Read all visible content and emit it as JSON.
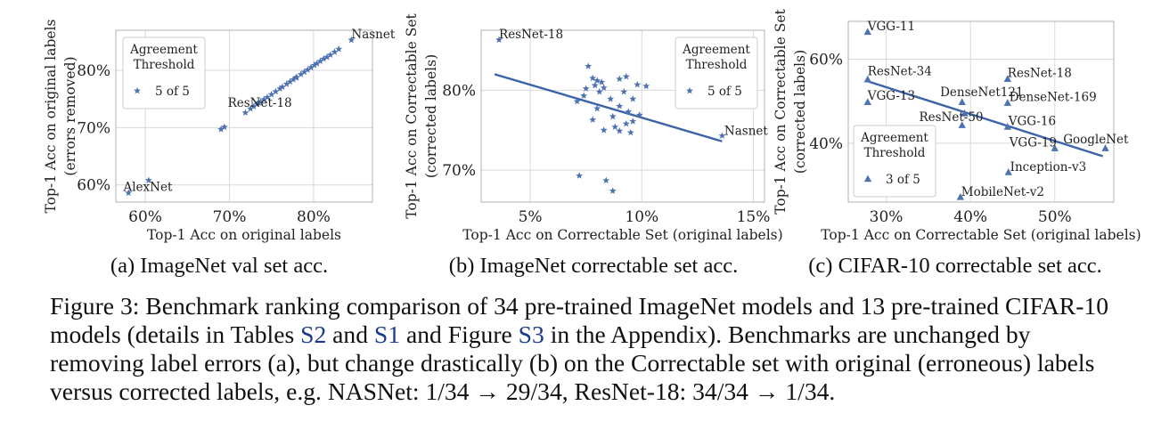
{
  "chart_data": [
    {
      "type": "scatter",
      "subcaption": "(a) ImageNet val set acc.",
      "xlabel": "Top-1 Acc on original labels",
      "ylabel": [
        "Top-1 Acc on original labels",
        "(errors removed)"
      ],
      "xlim": [
        56.5,
        87
      ],
      "ylim": [
        57,
        87
      ],
      "xticks": [
        {
          "v": 60,
          "label": "60%"
        },
        {
          "v": 70,
          "label": "70%"
        },
        {
          "v": 80,
          "label": "80%"
        }
      ],
      "yticks": [
        {
          "v": 60,
          "label": "60%"
        },
        {
          "v": 70,
          "label": "70%"
        },
        {
          "v": 80,
          "label": "80%"
        }
      ],
      "marker": "star",
      "legend": {
        "title": [
          "Agreement",
          "Threshold"
        ],
        "entry": "5 of 5",
        "position": "upper-left"
      },
      "points": [
        [
          58.0,
          58.6
        ],
        [
          60.4,
          60.8
        ],
        [
          69.0,
          69.7
        ],
        [
          69.4,
          70.1
        ],
        [
          71.9,
          72.6
        ],
        [
          72.5,
          73.3
        ],
        [
          72.9,
          73.7
        ],
        [
          73.3,
          74.1
        ],
        [
          73.7,
          74.5
        ],
        [
          74.1,
          74.9
        ],
        [
          74.5,
          75.3
        ],
        [
          75.0,
          75.8
        ],
        [
          75.5,
          76.3
        ],
        [
          76.0,
          76.8
        ],
        [
          76.3,
          77.1
        ],
        [
          76.8,
          77.6
        ],
        [
          77.2,
          78.0
        ],
        [
          77.6,
          78.4
        ],
        [
          78.0,
          78.8
        ],
        [
          78.5,
          79.3
        ],
        [
          78.9,
          79.7
        ],
        [
          79.3,
          80.1
        ],
        [
          79.7,
          80.5
        ],
        [
          80.1,
          80.9
        ],
        [
          80.4,
          81.2
        ],
        [
          80.8,
          81.6
        ],
        [
          81.2,
          82.0
        ],
        [
          81.6,
          82.3
        ],
        [
          82.0,
          82.7
        ],
        [
          82.5,
          83.2
        ],
        [
          83.0,
          83.7
        ],
        [
          84.5,
          85.3
        ],
        [
          73.5,
          74.3
        ],
        [
          77.9,
          78.7
        ]
      ],
      "annotations": [
        {
          "text": "Nasnet",
          "x": 84.5,
          "y": 85.3,
          "anchor": "start"
        },
        {
          "text": "ResNet-18",
          "x": 69.8,
          "y": 73.3,
          "anchor": "start"
        },
        {
          "text": "AlexNet",
          "x": 57.4,
          "y": 58.6,
          "anchor": "start"
        }
      ]
    },
    {
      "type": "scatter",
      "subcaption": "(b) ImageNet correctable set acc.",
      "xlabel": "Top-1 Acc on Correctable Set (original labels)",
      "ylabel": [
        "Top-1 Acc on Correctable Set",
        "(corrected labels)"
      ],
      "xlim": [
        2.8,
        15.5
      ],
      "ylim": [
        66,
        87.5
      ],
      "xticks": [
        {
          "v": 5,
          "label": "5%"
        },
        {
          "v": 10,
          "label": "10%"
        },
        {
          "v": 15,
          "label": "15%"
        }
      ],
      "yticks": [
        {
          "v": 70,
          "label": "70%"
        },
        {
          "v": 80,
          "label": "80%"
        }
      ],
      "marker": "star",
      "legend": {
        "title": [
          "Agreement",
          "Threshold"
        ],
        "entry": "5 of 5",
        "position": "upper-right"
      },
      "trendline": [
        [
          3.4,
          82.0
        ],
        [
          13.6,
          73.6
        ]
      ],
      "points": [
        [
          3.6,
          86.3
        ],
        [
          13.6,
          74.3
        ],
        [
          7.2,
          69.3
        ],
        [
          8.4,
          68.7
        ],
        [
          8.7,
          67.4
        ],
        [
          7.6,
          83.0
        ],
        [
          7.8,
          81.5
        ],
        [
          8.0,
          81.2
        ],
        [
          8.2,
          81.0
        ],
        [
          7.9,
          80.6
        ],
        [
          8.3,
          80.3
        ],
        [
          7.5,
          80.2
        ],
        [
          8.1,
          79.8
        ],
        [
          9.0,
          81.4
        ],
        [
          9.3,
          81.7
        ],
        [
          9.8,
          80.7
        ],
        [
          10.2,
          80.5
        ],
        [
          9.2,
          79.8
        ],
        [
          7.4,
          79.3
        ],
        [
          7.1,
          78.6
        ],
        [
          8.6,
          78.9
        ],
        [
          9.6,
          78.9
        ],
        [
          9.0,
          78.0
        ],
        [
          8.0,
          77.7
        ],
        [
          9.4,
          77.3
        ],
        [
          7.8,
          76.3
        ],
        [
          8.7,
          76.7
        ],
        [
          9.9,
          76.9
        ],
        [
          9.6,
          76.1
        ],
        [
          9.3,
          75.8
        ],
        [
          8.8,
          75.4
        ],
        [
          9.0,
          74.9
        ],
        [
          8.3,
          75.0
        ],
        [
          9.5,
          74.7
        ]
      ],
      "annotations": [
        {
          "text": "ResNet-18",
          "x": 3.6,
          "y": 86.3,
          "anchor": "start"
        },
        {
          "text": "Nasnet",
          "x": 13.7,
          "y": 74.2,
          "anchor": "start"
        }
      ]
    },
    {
      "type": "scatter",
      "subcaption": "(c) CIFAR-10 correctable set acc.",
      "xlabel": "Top-1 Acc on Correctable Set (original labels)",
      "ylabel": [
        "Top-1 Acc on Correctable Set",
        "(corrected labels)"
      ],
      "xlim": [
        25.5,
        57
      ],
      "ylim": [
        26,
        69
      ],
      "xticks": [
        {
          "v": 30,
          "label": "30%"
        },
        {
          "v": 40,
          "label": "40%"
        },
        {
          "v": 50,
          "label": "50%"
        }
      ],
      "yticks": [
        {
          "v": 40,
          "label": "40%"
        },
        {
          "v": 60,
          "label": "60%"
        }
      ],
      "marker": "triangle",
      "legend": {
        "title": [
          "Agreement",
          "Threshold"
        ],
        "entry": "3 of 5",
        "position": "lower-left"
      },
      "trendline": [
        [
          27.7,
          54.8
        ],
        [
          55.7,
          36.9
        ]
      ],
      "points": [
        [
          27.8,
          66.5
        ],
        [
          27.8,
          55.2
        ],
        [
          27.8,
          49.8
        ],
        [
          44.4,
          55.3
        ],
        [
          39.0,
          49.8
        ],
        [
          44.4,
          49.6
        ],
        [
          39.0,
          44.3
        ],
        [
          44.4,
          43.9
        ],
        [
          50.0,
          38.8
        ],
        [
          56.0,
          38.8
        ],
        [
          44.5,
          33.1
        ],
        [
          38.8,
          27.2
        ],
        [
          39.3,
          47.1
        ]
      ],
      "annotations": [
        {
          "text": "VGG-11",
          "x": 27.8,
          "y": 66.5,
          "anchor": "start"
        },
        {
          "text": "ResNet-34",
          "x": 27.8,
          "y": 55.8,
          "anchor": "start"
        },
        {
          "text": "VGG-13",
          "x": 27.8,
          "y": 49.9,
          "anchor": "start"
        },
        {
          "text": "DenseNet121",
          "x": 36.4,
          "y": 50.8,
          "anchor": "start"
        },
        {
          "text": "ResNet-18",
          "x": 44.4,
          "y": 55.3,
          "anchor": "start"
        },
        {
          "text": "DenseNet-169",
          "x": 44.6,
          "y": 49.6,
          "anchor": "start"
        },
        {
          "text": "ResNet-50",
          "x": 33.9,
          "y": 44.9,
          "anchor": "start"
        },
        {
          "text": "VGG-16",
          "x": 44.5,
          "y": 43.9,
          "anchor": "start"
        },
        {
          "text": "VGG-19",
          "x": 44.6,
          "y": 38.8,
          "anchor": "start"
        },
        {
          "text": "GoogleNet",
          "x": 51.0,
          "y": 39.6,
          "anchor": "start"
        },
        {
          "text": "Inception-v3",
          "x": 44.7,
          "y": 33.0,
          "anchor": "start"
        },
        {
          "text": "MobileNet-v2",
          "x": 38.9,
          "y": 27.1,
          "anchor": "start"
        }
      ]
    }
  ],
  "caption": {
    "prefix": "Figure 3: Benchmark ranking comparison of 34 pre-trained ImageNet models and 13 pre-trained CIFAR-10 models (details in Tables ",
    "ref1": "S2",
    "and": " and ",
    "ref2": "S1",
    "mid": " and Figure ",
    "ref3": "S3",
    "suffix": " in the Appendix). Benchmarks are unchanged by removing label errors (a), but change drastically (b) on the Correctable set with original (erroneous) labels versus corrected labels, e.g. NASNet: 1/34 → 29/34, ResNet-18: 34/34 → 1/34."
  },
  "colors": {
    "marker": "#4c72b0",
    "trend": "#3a63a8",
    "grid": "#d9d9d9",
    "frame": "#b0b0b0"
  }
}
